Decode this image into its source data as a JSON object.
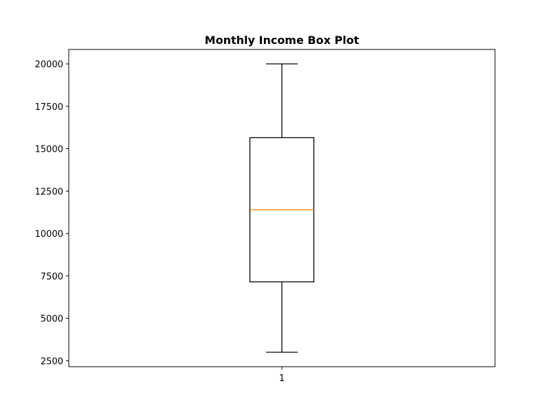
{
  "chart_data": {
    "type": "box",
    "title": "Monthly Income Box Plot",
    "xlabel": "",
    "ylabel": "",
    "categories": [
      "1"
    ],
    "boxes": [
      {
        "category": "1",
        "whisker_low": 3000,
        "q1": 7150,
        "median": 11400,
        "q3": 15650,
        "whisker_high": 20000
      }
    ],
    "yticks": [
      2500,
      5000,
      7500,
      10000,
      12500,
      15000,
      17500,
      20000
    ],
    "ylim": [
      2150,
      20850
    ],
    "grid": false,
    "colors": {
      "box": "#000000",
      "median": "#ff7f0e",
      "axes": "#000000"
    }
  }
}
